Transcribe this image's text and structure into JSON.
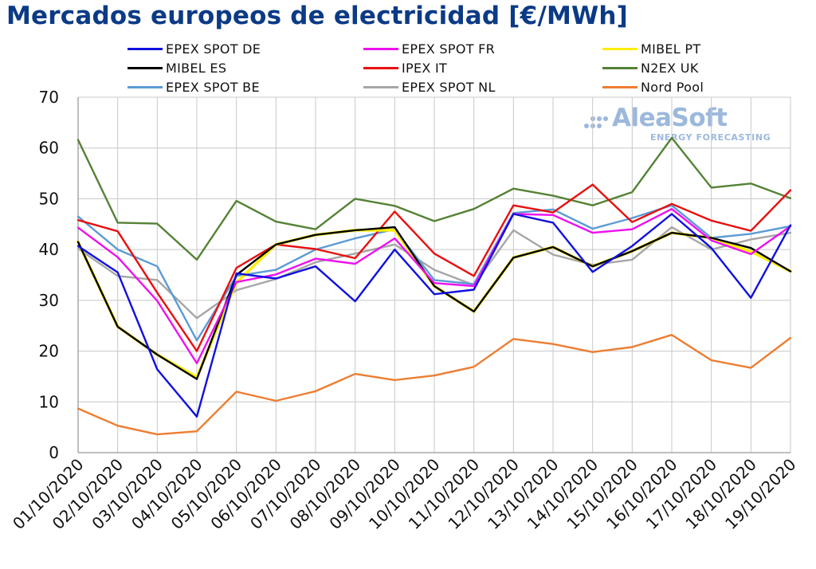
{
  "chart_data": {
    "type": "line",
    "title": "Mercados europeos de electricidad [€/MWh]",
    "xlabel": "",
    "ylabel": "",
    "ylim": [
      0,
      70
    ],
    "yticks": [
      0,
      10,
      20,
      30,
      40,
      50,
      60,
      70
    ],
    "grid": true,
    "legend_position": "top",
    "categories": [
      "01/10/2020",
      "02/10/2020",
      "03/10/2020",
      "04/10/2020",
      "05/10/2020",
      "06/10/2020",
      "07/10/2020",
      "08/10/2020",
      "09/10/2020",
      "10/10/2020",
      "11/10/2020",
      "12/10/2020",
      "13/10/2020",
      "14/10/2020",
      "15/10/2020",
      "16/10/2020",
      "17/10/2020",
      "18/10/2020",
      "19/10/2020"
    ],
    "series": [
      {
        "name": "EPEX SPOT DE",
        "color": "#1010e0",
        "values": [
          40.7,
          35.5,
          16.4,
          7.1,
          35.3,
          34.3,
          36.7,
          29.8,
          40.0,
          31.2,
          32.1,
          47.0,
          45.3,
          35.6,
          40.7,
          47.0,
          40.3,
          30.5,
          44.8
        ]
      },
      {
        "name": "EPEX SPOT FR",
        "color": "#ee10ee",
        "values": [
          44.3,
          38.5,
          29.9,
          17.6,
          33.6,
          35.1,
          38.2,
          37.2,
          42.2,
          33.4,
          32.8,
          47.0,
          46.8,
          43.3,
          44.0,
          48.0,
          41.8,
          39.1,
          44.6
        ]
      },
      {
        "name": "MIBEL PT",
        "color": "#ffee00",
        "values": [
          41.5,
          24.8,
          19.3,
          14.9,
          33.5,
          41.0,
          42.9,
          43.8,
          43.8,
          32.8,
          27.8,
          38.4,
          40.5,
          36.7,
          39.7,
          43.3,
          42.3,
          39.6,
          35.7
        ]
      },
      {
        "name": "MIBEL ES",
        "color": "#000000",
        "values": [
          41.5,
          24.8,
          19.3,
          14.5,
          35.0,
          41.0,
          42.9,
          43.8,
          44.4,
          32.8,
          27.8,
          38.4,
          40.5,
          36.7,
          39.7,
          43.3,
          42.3,
          40.3,
          35.7
        ]
      },
      {
        "name": "IPEX IT",
        "color": "#e81010",
        "values": [
          45.8,
          43.6,
          31.5,
          20.0,
          36.4,
          41.0,
          40.1,
          38.3,
          47.5,
          39.2,
          34.8,
          48.7,
          47.3,
          52.8,
          45.4,
          49.0,
          45.7,
          43.7,
          51.7
        ]
      },
      {
        "name": "N2EX UK",
        "color": "#548235",
        "values": [
          61.6,
          45.3,
          45.1,
          38.0,
          49.6,
          45.5,
          44.0,
          50.0,
          48.6,
          45.6,
          48.0,
          52.0,
          50.6,
          48.7,
          51.3,
          62.0,
          52.2,
          53.0,
          50.1
        ]
      },
      {
        "name": "EPEX SPOT BE",
        "color": "#5b9bd5",
        "values": [
          46.5,
          40.0,
          36.7,
          22.1,
          34.8,
          36.0,
          40.0,
          42.2,
          44.0,
          34.0,
          33.2,
          47.2,
          47.9,
          44.1,
          46.2,
          48.7,
          42.3,
          43.1,
          44.6
        ]
      },
      {
        "name": "EPEX SPOT NL",
        "color": "#a6a6a6",
        "values": [
          40.2,
          34.8,
          34.0,
          26.5,
          32.0,
          34.2,
          37.5,
          39.2,
          41.0,
          36.0,
          33.0,
          43.8,
          39.0,
          37.0,
          38.0,
          44.4,
          40.0,
          42.0,
          43.3
        ]
      },
      {
        "name": "Nord Pool",
        "color": "#ed7d31",
        "values": [
          8.7,
          5.3,
          3.6,
          4.2,
          12.0,
          10.2,
          12.1,
          15.5,
          14.3,
          15.2,
          16.9,
          22.4,
          21.4,
          19.8,
          20.8,
          23.2,
          18.2,
          16.7,
          22.6
        ]
      }
    ],
    "legend_order": [
      "EPEX SPOT DE",
      "EPEX SPOT FR",
      "MIBEL PT",
      "MIBEL ES",
      "IPEX IT",
      "N2EX UK",
      "EPEX SPOT BE",
      "EPEX SPOT NL",
      "Nord Pool"
    ]
  },
  "watermark": {
    "brand": "AleaSoft",
    "subtitle": "ENERGY FORECASTING",
    "color": "#9cb8dc"
  },
  "colors": {
    "title": "#0b3a86",
    "grid": "#c8c8c8",
    "axis": "#7f7f7f"
  }
}
